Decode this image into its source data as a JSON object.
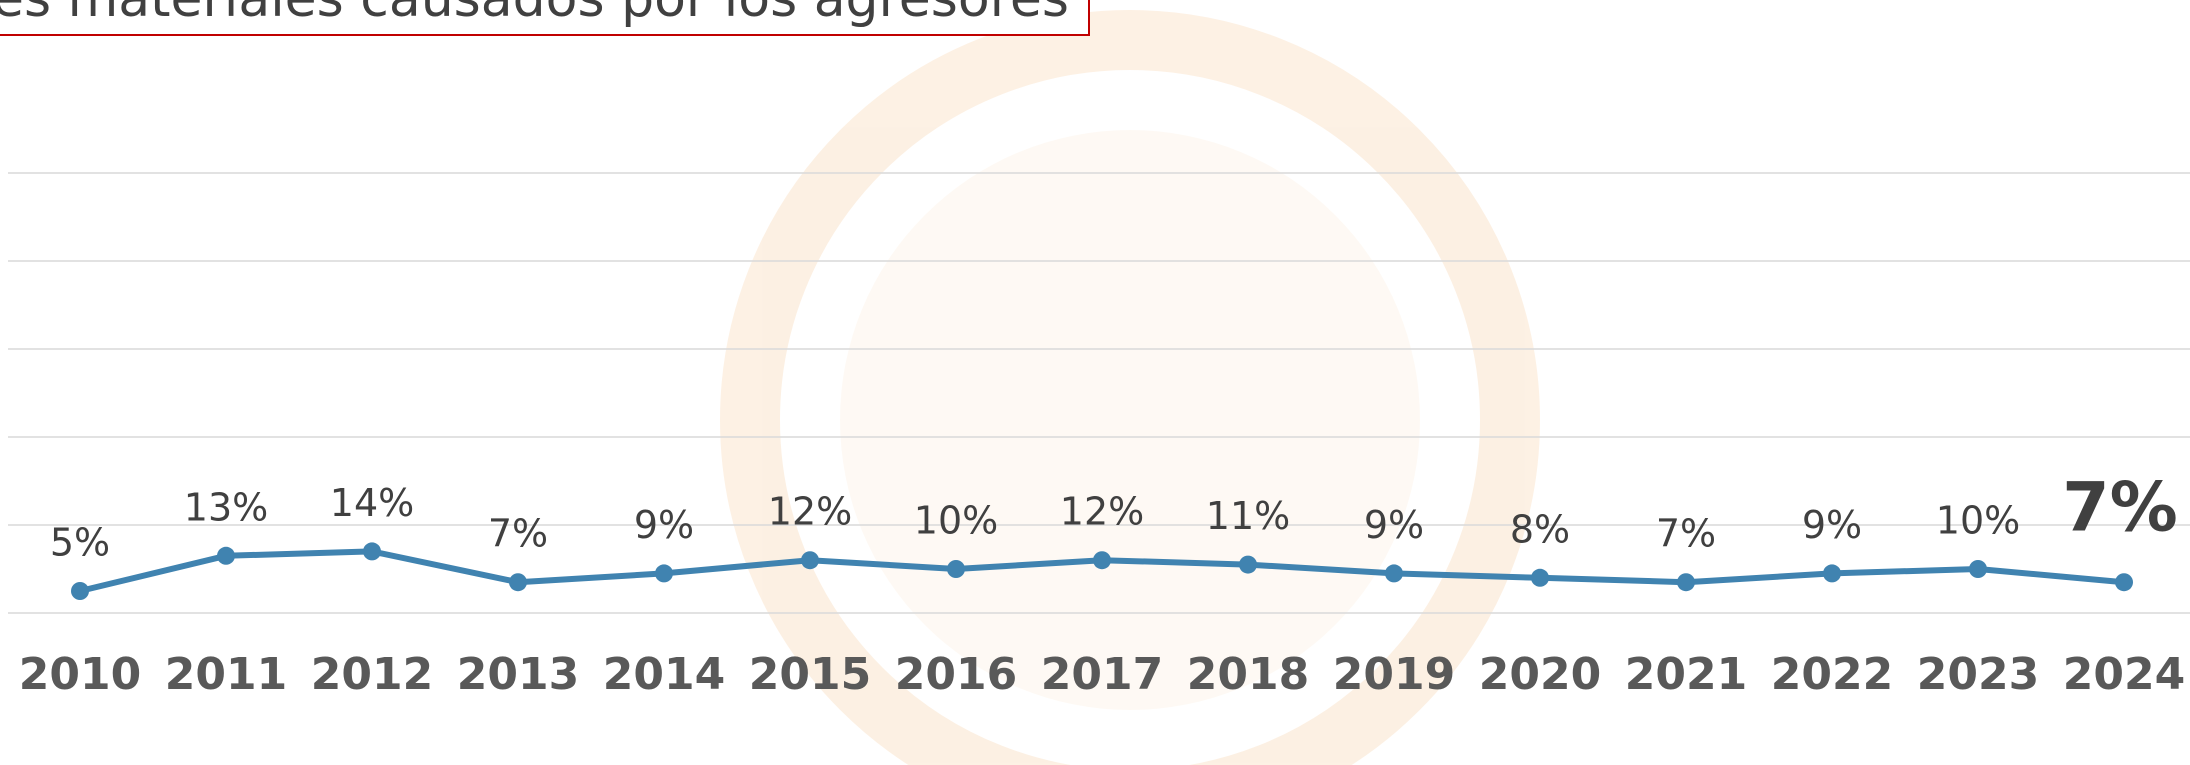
{
  "chart_data": {
    "type": "line",
    "title": "es materiales causados por los agresores",
    "categories": [
      "2010",
      "2011",
      "2012",
      "2013",
      "2014",
      "2015",
      "2016",
      "2017",
      "2018",
      "2019",
      "2020",
      "2021",
      "2022",
      "2023",
      "2024"
    ],
    "series": [
      {
        "color": "#4083b0",
        "values": [
          5,
          13,
          14,
          7,
          9,
          12,
          10,
          12,
          11,
          9,
          8,
          7,
          9,
          10,
          7
        ],
        "value_labels": [
          "5%",
          "13%",
          "14%",
          "7%",
          "9%",
          "12%",
          "10%",
          "12%",
          "11%",
          "9%",
          "8%",
          "7%",
          "9%",
          "10%",
          "7%"
        ]
      }
    ],
    "ylim": [
      0,
      100
    ],
    "yticks": [
      0,
      20,
      40,
      60,
      80,
      100
    ],
    "grid": true
  }
}
